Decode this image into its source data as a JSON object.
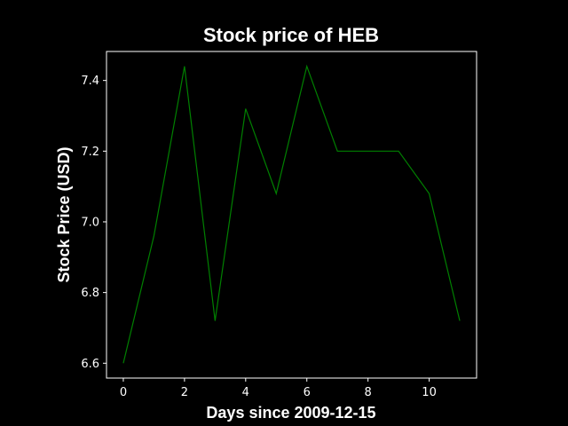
{
  "chart_data": {
    "type": "line",
    "title": "Stock price of HEB",
    "xlabel": "Days since 2009-12-15",
    "ylabel": "Stock Price (USD)",
    "x": [
      0,
      1,
      2,
      3,
      4,
      5,
      6,
      7,
      8,
      9,
      10,
      11
    ],
    "series": [
      {
        "values": [
          6.6,
          6.96,
          7.44,
          6.72,
          7.32,
          7.08,
          7.44,
          7.2,
          7.2,
          7.2,
          7.08,
          6.72
        ],
        "color": "#008000"
      }
    ],
    "xlim": [
      -0.55,
      11.55
    ],
    "ylim": [
      6.558,
      7.482
    ],
    "xticks": [
      0,
      2,
      4,
      6,
      8,
      10
    ],
    "xtick_labels": [
      "0",
      "2",
      "4",
      "6",
      "8",
      "10"
    ],
    "yticks": [
      6.6,
      6.8,
      7.0,
      7.2,
      7.4
    ],
    "ytick_labels": [
      "6.6",
      "6.8",
      "7.0",
      "7.2",
      "7.4"
    ],
    "grid": false,
    "legend": false,
    "background": "#000000",
    "foreground": "#ffffff"
  }
}
